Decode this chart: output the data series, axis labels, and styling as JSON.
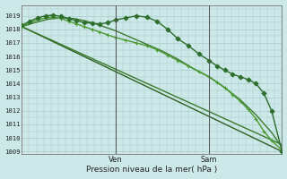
{
  "background_color": "#cce8e8",
  "grid_color": "#aacaca",
  "ylabel_ticks": [
    1009,
    1010,
    1011,
    1012,
    1013,
    1014,
    1015,
    1016,
    1017,
    1018,
    1019
  ],
  "ylim": [
    1008.8,
    1019.8
  ],
  "xlim": [
    0,
    1
  ],
  "xlabel": "Pression niveau de la mer( hPa )",
  "day_labels": [
    "Ven",
    "Sam"
  ],
  "day_positions": [
    0.36,
    0.72
  ],
  "series": [
    {
      "x": [
        0.0,
        1.0
      ],
      "y": [
        1018.2,
        1009.0
      ],
      "marker": null,
      "linewidth": 1.0,
      "color": "#2d6020",
      "zorder": 2
    },
    {
      "x": [
        0.0,
        1.0
      ],
      "y": [
        1018.2,
        1009.5
      ],
      "marker": null,
      "linewidth": 1.0,
      "color": "#3a7a2a",
      "zorder": 2
    },
    {
      "x": [
        0.0,
        0.03,
        0.06,
        0.09,
        0.12,
        0.15,
        0.18,
        0.21,
        0.24,
        0.27,
        0.3,
        0.33,
        0.36,
        0.4,
        0.44,
        0.48,
        0.52,
        0.56,
        0.6,
        0.64,
        0.68,
        0.72,
        0.75,
        0.78,
        0.81,
        0.84,
        0.87,
        0.9,
        0.93,
        0.96,
        1.0
      ],
      "y": [
        1018.2,
        1018.5,
        1018.7,
        1018.85,
        1018.9,
        1018.8,
        1018.6,
        1018.4,
        1018.2,
        1018.0,
        1017.8,
        1017.6,
        1017.4,
        1017.2,
        1017.0,
        1016.8,
        1016.5,
        1016.1,
        1015.7,
        1015.3,
        1014.9,
        1014.5,
        1014.1,
        1013.7,
        1013.2,
        1012.7,
        1012.1,
        1011.4,
        1010.5,
        1009.8,
        1009.1
      ],
      "marker": "+",
      "markersize": 3.5,
      "linewidth": 1.0,
      "color": "#4a9a30",
      "zorder": 3
    },
    {
      "x": [
        0.0,
        0.03,
        0.06,
        0.09,
        0.12,
        0.15,
        0.18,
        0.21,
        0.24,
        0.27,
        0.3,
        0.33,
        0.36,
        0.4,
        0.44,
        0.48,
        0.52,
        0.56,
        0.6,
        0.64,
        0.68,
        0.72,
        0.75,
        0.78,
        0.81,
        0.84,
        0.87,
        0.9,
        0.93,
        0.96,
        1.0
      ],
      "y": [
        1018.3,
        1018.6,
        1018.85,
        1019.0,
        1019.05,
        1018.95,
        1018.8,
        1018.65,
        1018.5,
        1018.45,
        1018.4,
        1018.5,
        1018.7,
        1018.85,
        1019.0,
        1018.9,
        1018.6,
        1018.0,
        1017.3,
        1016.8,
        1016.2,
        1015.7,
        1015.3,
        1015.0,
        1014.7,
        1014.5,
        1014.3,
        1014.0,
        1013.3,
        1012.0,
        1009.0
      ],
      "marker": "D",
      "markersize": 2.5,
      "linewidth": 1.0,
      "color": "#2d6e2d",
      "zorder": 3
    },
    {
      "x": [
        0.0,
        0.05,
        0.1,
        0.15,
        0.2,
        0.25,
        0.3,
        0.36,
        0.42,
        0.48,
        0.54,
        0.6,
        0.66,
        0.72,
        0.78,
        0.84,
        0.9,
        0.96,
        1.0
      ],
      "y": [
        1018.2,
        1018.5,
        1018.75,
        1018.85,
        1018.8,
        1018.6,
        1018.3,
        1017.9,
        1017.4,
        1016.9,
        1016.4,
        1015.8,
        1015.1,
        1014.5,
        1013.7,
        1012.8,
        1011.7,
        1010.4,
        1009.3
      ],
      "marker": null,
      "linewidth": 1.0,
      "color": "#3d7a30",
      "zorder": 2
    }
  ]
}
